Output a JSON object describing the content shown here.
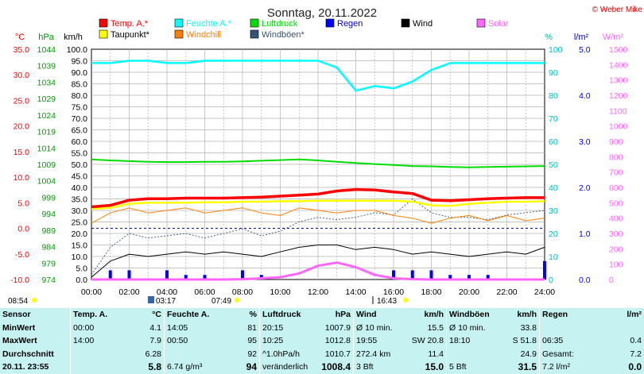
{
  "title": "Sonntag, 20.11.2022",
  "copyright": "© Weber Mike",
  "colors": {
    "temp": "#ff0000",
    "humidity": "#00ffff",
    "pressure": "#00dd00",
    "wind": "#000000",
    "dewpoint": "#ffff00",
    "windchill": "#ff8000",
    "gusts": "#335577",
    "rain": "#0000ff",
    "solar": "#ff66ff",
    "panel": "#c6f2f2"
  },
  "legend": [
    {
      "label": "Temp. A.*",
      "color": "#ff0000",
      "name": "temp"
    },
    {
      "label": "Feuchte A.*",
      "color": "#00ffff",
      "name": "humidity"
    },
    {
      "label": "Luftdruck",
      "color": "#00dd00",
      "name": "pressure"
    },
    {
      "label": "Regen",
      "color": "#0000ff",
      "name": "rain"
    },
    {
      "label": "Wind",
      "color": "#000000",
      "name": "wind"
    },
    {
      "label": "Solar",
      "color": "#ff66ff",
      "name": "solar"
    },
    {
      "label": "Taupunkt*",
      "color": "#ffff00",
      "name": "dewpoint"
    },
    {
      "label": "Windchill",
      "color": "#ff8000",
      "name": "windchill"
    },
    {
      "label": "Windböen*",
      "color": "#335577",
      "name": "gusts"
    }
  ],
  "axes": {
    "temp": {
      "unit": "°C",
      "ticks": [
        "35.0",
        "30.0",
        "25.0",
        "20.0",
        "15.0",
        "10.0",
        "5.0",
        "0.0",
        "-5.0",
        "-10.0"
      ]
    },
    "pressure": {
      "unit": "hPa",
      "ticks": [
        "1044",
        "1039",
        "1034",
        "1029",
        "1024",
        "1019",
        "1014",
        "1009",
        "1004",
        "999",
        "994",
        "989",
        "984",
        "979",
        "974"
      ]
    },
    "wind": {
      "unit": "km/h",
      "ticks": [
        "100.0",
        "95.0",
        "90.0",
        "85.0",
        "80.0",
        "75.0",
        "70.0",
        "65.0",
        "60.0",
        "55.0",
        "50.0",
        "45.0",
        "40.0",
        "35.0",
        "30.0",
        "25.0",
        "20.0",
        "15.0",
        "10.0",
        "5.0",
        "0.0"
      ]
    },
    "humidity": {
      "unit": "%",
      "ticks": [
        "100",
        "90",
        "80",
        "70",
        "60",
        "50",
        "40",
        "30",
        "20",
        "10",
        "0"
      ]
    },
    "rain": {
      "unit": "l/m²",
      "ticks": [
        "5.0",
        "4.0",
        "3.0",
        "2.0",
        "1.0",
        "0.0"
      ]
    },
    "solar": {
      "unit": "W/m²",
      "ticks": [
        "1500",
        "1400",
        "1300",
        "1200",
        "1100",
        "1000",
        "900",
        "800",
        "700",
        "600",
        "500",
        "400",
        "300",
        "200",
        "100",
        "0"
      ]
    },
    "time": {
      "ticks": [
        "00:00",
        "02:00",
        "04:00",
        "06:00",
        "08:00",
        "10:00",
        "12:00",
        "14:00",
        "16:00",
        "18:00",
        "20:00",
        "22:00",
        "24:00"
      ]
    }
  },
  "events": {
    "sunrise": "08:54",
    "moonset": "03:17",
    "sunrise2": "07:49",
    "sunset": "16:43"
  },
  "chart_data": {
    "type": "line",
    "x_hours": [
      0,
      1,
      2,
      3,
      4,
      5,
      6,
      7,
      8,
      9,
      10,
      11,
      12,
      13,
      14,
      15,
      16,
      17,
      18,
      19,
      20,
      21,
      22,
      23,
      24
    ],
    "series": [
      {
        "name": "Temp. A.*",
        "unit": "°C",
        "values": [
          4.2,
          4.5,
          5.5,
          5.8,
          5.8,
          5.9,
          5.9,
          5.9,
          6.0,
          6.1,
          6.3,
          6.5,
          6.7,
          7.3,
          7.6,
          7.5,
          7.1,
          6.8,
          5.5,
          5.4,
          5.6,
          5.8,
          5.9,
          6.0,
          6.0
        ]
      },
      {
        "name": "Feuchte A.*",
        "unit": "%",
        "values": [
          94,
          94,
          95,
          95,
          94,
          94,
          95,
          95,
          95,
          95,
          95,
          95,
          95,
          92,
          82,
          84,
          83,
          86,
          91,
          94,
          94,
          94,
          94,
          94,
          94
        ]
      },
      {
        "name": "Luftdruck",
        "unit": "hPa",
        "values": [
          1010.5,
          1010.2,
          1010.0,
          1009.8,
          1009.7,
          1009.7,
          1009.8,
          1009.8,
          1009.9,
          1010.1,
          1010.3,
          1010.5,
          1010.2,
          1009.8,
          1009.4,
          1009.1,
          1008.8,
          1008.5,
          1008.4,
          1008.2,
          1008.1,
          1008.2,
          1008.3,
          1008.4,
          1008.5
        ]
      },
      {
        "name": "Taupunkt*",
        "unit": "°C",
        "values": [
          3.8,
          4.0,
          4.8,
          5.0,
          5.0,
          5.0,
          5.1,
          5.1,
          5.2,
          5.2,
          5.3,
          5.3,
          5.4,
          5.4,
          5.4,
          5.4,
          5.4,
          5.2,
          4.5,
          4.4,
          4.8,
          5.0,
          5.2,
          5.2,
          5.3
        ]
      },
      {
        "name": "Windchill",
        "unit": "°C",
        "values": [
          1.0,
          3.0,
          4.0,
          3.0,
          3.5,
          4.0,
          3.0,
          3.5,
          4.0,
          3.0,
          2.5,
          4.0,
          3.5,
          3.0,
          3.5,
          3.5,
          2.5,
          2.0,
          1.0,
          2.0,
          2.5,
          1.5,
          2.5,
          1.5,
          2.0
        ]
      },
      {
        "name": "Wind",
        "unit": "km/h",
        "values": [
          1,
          8,
          11,
          10,
          11,
          12,
          11,
          12,
          11,
          10,
          12,
          14,
          15,
          15,
          13,
          14,
          13,
          11,
          12,
          11,
          10,
          11,
          12,
          11,
          14
        ]
      },
      {
        "name": "Windböen*",
        "unit": "km/h",
        "values": [
          2,
          14,
          20,
          18,
          19,
          20,
          18,
          20,
          22,
          19,
          21,
          25,
          27,
          26,
          27,
          29,
          28,
          35,
          29,
          27,
          27,
          26,
          28,
          29,
          30
        ]
      },
      {
        "name": "Solar",
        "unit": "W/m²",
        "values": [
          0,
          0,
          0,
          0,
          0,
          0,
          0,
          0,
          2,
          8,
          15,
          40,
          90,
          110,
          80,
          30,
          8,
          2,
          0,
          0,
          0,
          0,
          0,
          0,
          0
        ]
      },
      {
        "name": "Regen",
        "unit": "l/m²",
        "values": [
          0,
          0.2,
          0.2,
          0,
          0.2,
          0.1,
          0.1,
          0,
          0.2,
          0.1,
          0,
          0,
          0,
          0,
          0,
          0,
          0.2,
          0.2,
          0.2,
          0.1,
          0.1,
          0.1,
          0,
          0,
          0.4
        ]
      }
    ],
    "freezing_line_c": 0.0
  },
  "stats": {
    "headers": {
      "sensor": "Sensor",
      "temp": "Temp. A.",
      "temp_unit": "°C",
      "hum": "Feuchte A.",
      "hum_unit": "%",
      "press": "Luftdruck",
      "press_unit": "hPa",
      "wind": "Wind",
      "wind_unit": "km/h",
      "gust": "Windböen",
      "gust_unit": "km/h",
      "rain": "Regen",
      "rain_unit": "l/m²"
    },
    "rows": [
      {
        "label": "MinWert",
        "t1": "00:00",
        "t2": "4.1",
        "h1": "14:05",
        "h2": "81",
        "p1": "20:15",
        "p2": "1007.9",
        "w1": "Ø 10 min.",
        "w2": "15.5",
        "g1": "Ø 10 min.",
        "g2": "33.8",
        "r1": "",
        "r2": ""
      },
      {
        "label": "MaxWert",
        "t1": "14:00",
        "t2": "7.9",
        "h1": "00:50",
        "h2": "95",
        "p1": "10:25",
        "p2": "1012.8",
        "w1": "19:55",
        "w2": "SW 20.8",
        "g1": "18:10",
        "g2": "S 51.8",
        "r1": "06:35",
        "r2": "0.4"
      },
      {
        "label": "Durchschnitt",
        "t1": "",
        "t2": "6.28",
        "h1": "",
        "h2": "92",
        "p1": "^1.0hPa/h",
        "p2": "1010.7",
        "w1": "272.4 km",
        "w2": "11.4",
        "g1": "",
        "g2": "24.9",
        "r1": "Gesamt:",
        "r2": "7.2"
      },
      {
        "label": "20.11. 23:55",
        "t1": "",
        "t2": "5.8",
        "h1": "6.74 g/m³",
        "h2": "94",
        "p1": "veränderlich",
        "p2": "1008.4",
        "w1": "3 Bft",
        "w2": "15.0",
        "g1": "5 Bft",
        "g2": "31.5",
        "r1": "7.2 l/m²",
        "r2": "0.0"
      }
    ]
  }
}
